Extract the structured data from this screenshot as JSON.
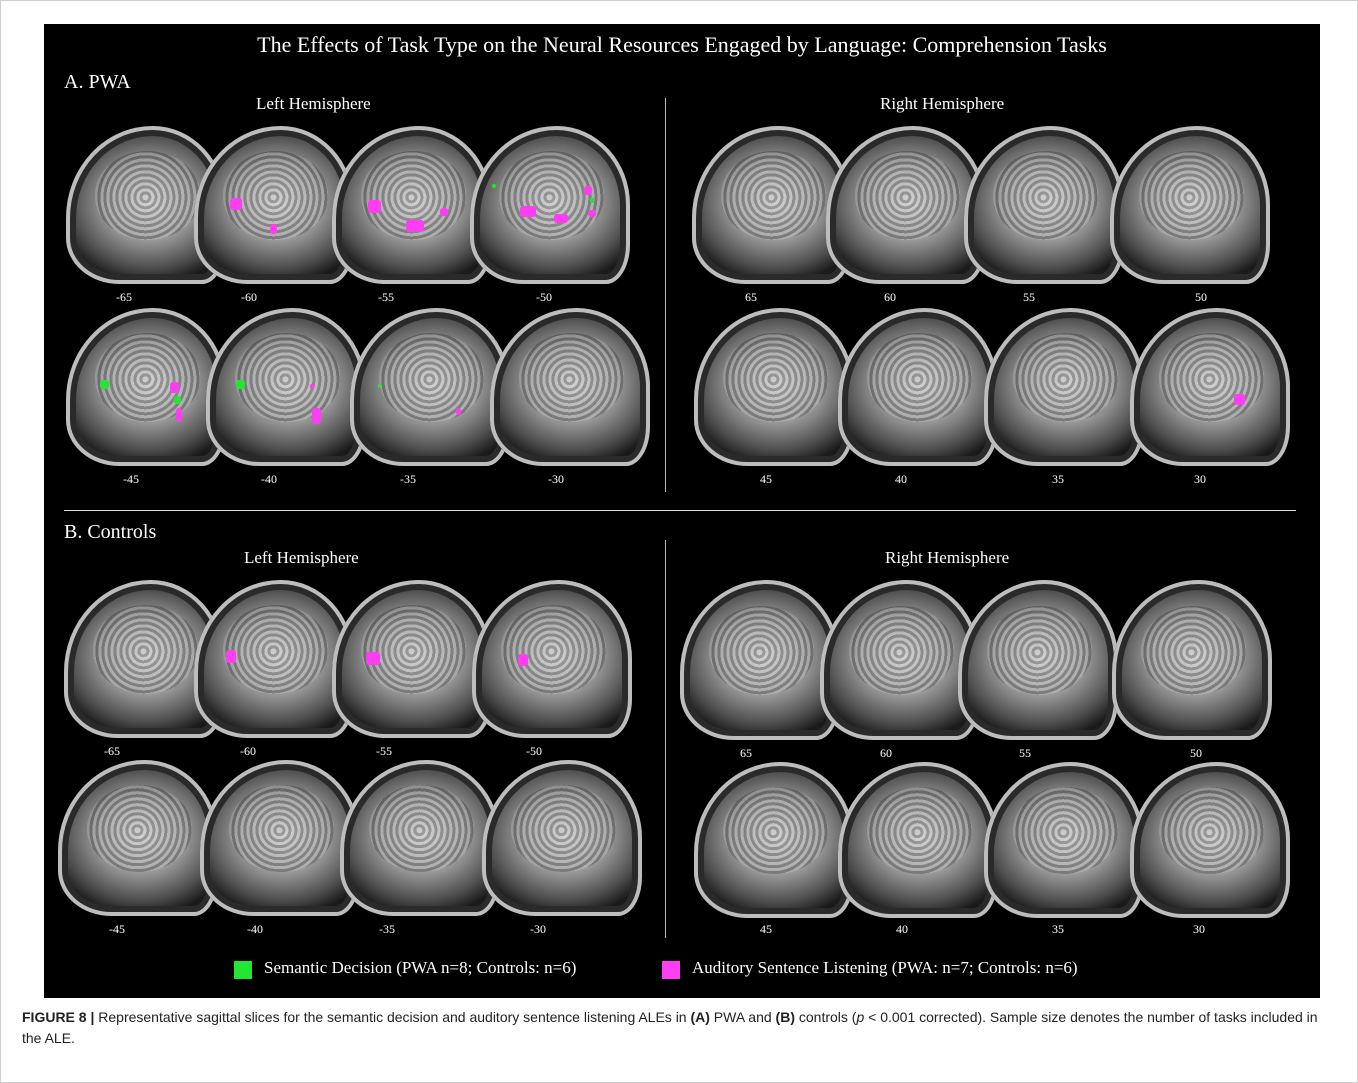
{
  "figure": {
    "title": "The Effects of Task Type on the Neural Resources Engaged by Language: Comprehension Tasks",
    "sections": [
      {
        "label": "A. PWA",
        "left_label": "Left Hemisphere",
        "right_label": "Right Hemisphere",
        "left_row1_coords": [
          "-65",
          "-60",
          "-55",
          "-50"
        ],
        "left_row2_coords": [
          "-45",
          "-40",
          "-35",
          "-30"
        ],
        "right_row1_coords": [
          "65",
          "60",
          "55",
          "50"
        ],
        "right_row2_coords": [
          "45",
          "40",
          "35",
          "30"
        ]
      },
      {
        "label": "B. Controls",
        "left_label": "Left Hemisphere",
        "right_label": "Right Hemisphere",
        "left_row1_coords": [
          "-65",
          "-60",
          "-55",
          "-50"
        ],
        "left_row2_coords": [
          "-45",
          "-40",
          "-35",
          "-30"
        ],
        "right_row1_coords": [
          "65",
          "60",
          "55",
          "50"
        ],
        "right_row2_coords": [
          "45",
          "40",
          "35",
          "30"
        ]
      }
    ],
    "legend": [
      {
        "label": "Semantic Decision (PWA n=8; Controls: n=6)",
        "color": "#22e632"
      },
      {
        "label": "Auditory Sentence Listening (PWA: n=7; Controls: n=6)",
        "color": "#ff3df2"
      }
    ]
  },
  "caption": {
    "figure_number": "FIGURE 8 |",
    "part1": " Representative sagittal slices for the semantic decision and auditory sentence listening ALEs in ",
    "a": "(A)",
    "part2": " PWA and ",
    "b": "(B)",
    "part3": " controls (",
    "p": "p",
    "part4": " < 0.001 corrected). Sample size denotes the number of tasks included in the ALE."
  },
  "colors": {
    "background": "#000000",
    "semantic_decision": "#22e632",
    "auditory_sentence_listening": "#ff3df2"
  }
}
